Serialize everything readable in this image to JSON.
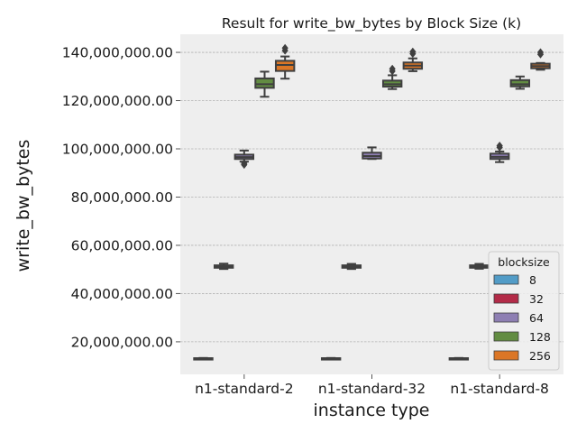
{
  "chart_data": {
    "type": "box",
    "title": "Result for write_bw_bytes by Block Size (k)",
    "xlabel": "instance type",
    "ylabel": "write_bw_bytes",
    "categories": [
      "n1-standard-2",
      "n1-standard-32",
      "n1-standard-8"
    ],
    "ylim": [
      6500000,
      147500000
    ],
    "yticks": [
      20000000,
      40000000,
      60000000,
      80000000,
      100000000,
      120000000,
      140000000
    ],
    "ytick_labels": [
      "20,000,000.00",
      "40,000,000.00",
      "60,000,000.00",
      "80,000,000.00",
      "100,000,000.00",
      "120,000,000.00",
      "140,000,000.00"
    ],
    "grid": true,
    "legend": {
      "title": "blocksize",
      "placement": "lower-right"
    },
    "series": [
      {
        "name": "8",
        "color": "#348abd",
        "boxes": [
          {
            "whislo": 12900000,
            "q1": 13000000,
            "med": 13100000,
            "q3": 13200000,
            "whishi": 13300000,
            "fliers": []
          },
          {
            "whislo": 12900000,
            "q1": 13000000,
            "med": 13100000,
            "q3": 13200000,
            "whishi": 13300000,
            "fliers": []
          },
          {
            "whislo": 12900000,
            "q1": 13000000,
            "med": 13100000,
            "q3": 13200000,
            "whishi": 13300000,
            "fliers": []
          }
        ]
      },
      {
        "name": "32",
        "color": "#a60628",
        "boxes": [
          {
            "whislo": 50200000,
            "q1": 50700000,
            "med": 51200000,
            "q3": 51700000,
            "whishi": 52400000,
            "fliers": []
          },
          {
            "whislo": 50200000,
            "q1": 50700000,
            "med": 51200000,
            "q3": 51700000,
            "whishi": 52300000,
            "fliers": []
          },
          {
            "whislo": 50300000,
            "q1": 50700000,
            "med": 51200000,
            "q3": 51700000,
            "whishi": 52300000,
            "fliers": []
          }
        ]
      },
      {
        "name": "64",
        "color": "#7a68a6",
        "boxes": [
          {
            "whislo": 94700000,
            "q1": 95800000,
            "med": 96600000,
            "q3": 97600000,
            "whishi": 99300000,
            "fliers": [
              93400000,
              94000000
            ]
          },
          {
            "whislo": 95800000,
            "q1": 96000000,
            "med": 97000000,
            "q3": 98400000,
            "whishi": 100600000,
            "fliers": []
          },
          {
            "whislo": 94500000,
            "q1": 95800000,
            "med": 96700000,
            "q3": 98000000,
            "whishi": 98900000,
            "fliers": [
              100600000,
              101300000
            ]
          }
        ]
      },
      {
        "name": "128",
        "color": "#467821",
        "boxes": [
          {
            "whislo": 121600000,
            "q1": 125300000,
            "med": 126800000,
            "q3": 129200000,
            "whishi": 132000000,
            "fliers": []
          },
          {
            "whislo": 124800000,
            "q1": 125800000,
            "med": 126800000,
            "q3": 128300000,
            "whishi": 130500000,
            "fliers": [
              132200000,
              133200000
            ]
          },
          {
            "whislo": 124900000,
            "q1": 125900000,
            "med": 126800000,
            "q3": 128500000,
            "whishi": 130000000,
            "fliers": []
          }
        ]
      },
      {
        "name": "256",
        "color": "#d55e00",
        "boxes": [
          {
            "whislo": 129100000,
            "q1": 132300000,
            "med": 134800000,
            "q3": 136500000,
            "whishi": 138300000,
            "fliers": [
              140700000,
              141800000
            ]
          },
          {
            "whislo": 132200000,
            "q1": 133200000,
            "med": 134500000,
            "q3": 135800000,
            "whishi": 137500000,
            "fliers": [
              139400000,
              140300000
            ]
          },
          {
            "whislo": 132800000,
            "q1": 133400000,
            "med": 134300000,
            "q3": 135300000,
            "whishi": 135600000,
            "fliers": [
              139200000,
              140000000
            ]
          }
        ]
      }
    ]
  }
}
